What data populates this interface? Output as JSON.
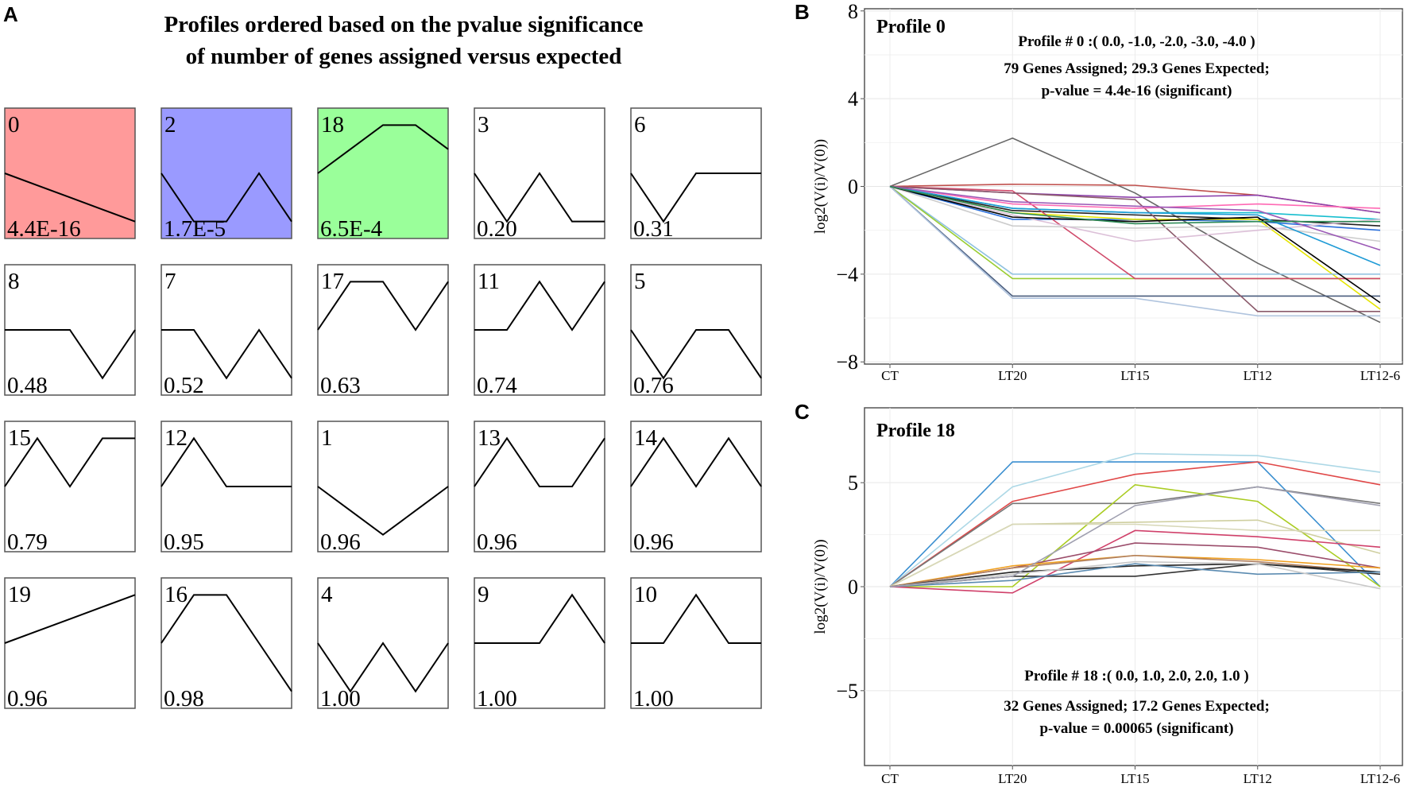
{
  "panel_labels": {
    "a": "A",
    "b": "B",
    "c": "C"
  },
  "chart_data": [
    {
      "type": "profile-grid",
      "title_line1": "Profiles ordered based on the pvalue significance",
      "title_line2": "of number of genes assigned versus expected",
      "profiles": [
        {
          "id": "0",
          "pvalue": "4.4E-16",
          "shape": [
            0,
            -1,
            -2,
            -3,
            -4
          ],
          "fill": "#ff9a9a"
        },
        {
          "id": "2",
          "pvalue": "1.7E-5",
          "shape": [
            0,
            -1,
            -1,
            0,
            -1
          ],
          "fill": "#9a9aff"
        },
        {
          "id": "18",
          "pvalue": "6.5E-4",
          "shape": [
            0,
            1,
            2,
            2,
            1
          ],
          "fill": "#9aff9a"
        },
        {
          "id": "3",
          "pvalue": "0.20",
          "shape": [
            0,
            -1,
            0,
            -1,
            -1
          ],
          "fill": "#ffffff"
        },
        {
          "id": "6",
          "pvalue": "0.31",
          "shape": [
            0,
            -1,
            0,
            0,
            0
          ],
          "fill": "#ffffff"
        },
        {
          "id": "8",
          "pvalue": "0.48",
          "shape": [
            0,
            0,
            0,
            -1,
            0
          ],
          "fill": "#ffffff"
        },
        {
          "id": "7",
          "pvalue": "0.52",
          "shape": [
            0,
            0,
            -1,
            0,
            -1
          ],
          "fill": "#ffffff"
        },
        {
          "id": "17",
          "pvalue": "0.63",
          "shape": [
            0,
            1,
            1,
            0,
            1
          ],
          "fill": "#ffffff"
        },
        {
          "id": "11",
          "pvalue": "0.74",
          "shape": [
            0,
            0,
            1,
            0,
            1
          ],
          "fill": "#ffffff"
        },
        {
          "id": "5",
          "pvalue": "0.76",
          "shape": [
            0,
            -1,
            0,
            0,
            -1
          ],
          "fill": "#ffffff"
        },
        {
          "id": "15",
          "pvalue": "0.79",
          "shape": [
            0,
            1,
            0,
            1,
            1
          ],
          "fill": "#ffffff"
        },
        {
          "id": "12",
          "pvalue": "0.95",
          "shape": [
            0,
            1,
            0,
            0,
            0
          ],
          "fill": "#ffffff"
        },
        {
          "id": "1",
          "pvalue": "0.96",
          "shape": [
            0,
            -1,
            -2,
            -1,
            0
          ],
          "fill": "#ffffff"
        },
        {
          "id": "13",
          "pvalue": "0.96",
          "shape": [
            0,
            1,
            0,
            0,
            1
          ],
          "fill": "#ffffff"
        },
        {
          "id": "14",
          "pvalue": "0.96",
          "shape": [
            0,
            1,
            0,
            1,
            0
          ],
          "fill": "#ffffff"
        },
        {
          "id": "19",
          "pvalue": "0.96",
          "shape": [
            0,
            1,
            2,
            3,
            4
          ],
          "fill": "#ffffff"
        },
        {
          "id": "16",
          "pvalue": "0.98",
          "shape": [
            0,
            1,
            1,
            0,
            -1
          ],
          "fill": "#ffffff"
        },
        {
          "id": "4",
          "pvalue": "1.00",
          "shape": [
            0,
            -1,
            0,
            -1,
            0
          ],
          "fill": "#ffffff"
        },
        {
          "id": "9",
          "pvalue": "1.00",
          "shape": [
            0,
            0,
            0,
            1,
            0
          ],
          "fill": "#ffffff"
        },
        {
          "id": "10",
          "pvalue": "1.00",
          "shape": [
            0,
            0,
            1,
            0,
            0
          ],
          "fill": "#ffffff"
        }
      ]
    },
    {
      "type": "line",
      "title": "Profile 0",
      "annotation_line1": "Profile # 0 :( 0.0, -1.0, -2.0, -3.0, -4.0 )",
      "annotation_line2": "79 Genes Assigned; 29.3 Genes Expected;",
      "annotation_line3": "p-value = 4.4e-16 (significant)",
      "ylabel": "log2(V(i)/V(0))",
      "categories": [
        "CT",
        "LT20",
        "LT15",
        "LT12",
        "LT12-6"
      ],
      "yticks": [
        "8",
        "4",
        "0",
        "−4",
        "−8"
      ],
      "ytick_values": [
        8,
        4,
        0,
        -4,
        -8
      ],
      "ylim": [
        -8.1,
        8.1
      ],
      "grid": true,
      "series": [
        {
          "color": "#666666",
          "values": [
            0,
            2.2,
            -0.3,
            -3.5,
            -6.2
          ]
        },
        {
          "color": "#c0504d",
          "values": [
            0,
            0.1,
            0.05,
            -0.4,
            -1.2
          ]
        },
        {
          "color": "#8e44ad",
          "values": [
            0,
            -0.3,
            -0.5,
            -0.4,
            -1.2
          ]
        },
        {
          "color": "#17becf",
          "values": [
            0,
            -1.0,
            -1.2,
            -1.2,
            -1.5
          ]
        },
        {
          "color": "#222222",
          "values": [
            0,
            -1.1,
            -1.3,
            -1.5,
            -1.8
          ]
        },
        {
          "color": "#2a6fdb",
          "values": [
            0,
            -1.5,
            -1.5,
            -1.6,
            -2.0
          ]
        },
        {
          "color": "#e5e500",
          "values": [
            0,
            -1.2,
            -1.5,
            -1.5,
            -5.6
          ]
        },
        {
          "color": "#8ec1e0",
          "values": [
            0,
            -4.0,
            -4.0,
            -4.0,
            -4.0
          ]
        },
        {
          "color": "#9acd32",
          "values": [
            0,
            -4.2,
            -4.2,
            -4.2,
            -4.2
          ]
        },
        {
          "color": "#4a5d7e",
          "values": [
            0,
            -5.0,
            -5.0,
            -5.0,
            -5.0
          ]
        },
        {
          "color": "#b0c4de",
          "values": [
            0,
            -5.1,
            -5.1,
            -5.9,
            -5.9
          ]
        },
        {
          "color": "#d04a6a",
          "values": [
            0,
            -0.2,
            -4.2,
            -4.2,
            -4.2
          ]
        },
        {
          "color": "#8b5a6b",
          "values": [
            0,
            -0.3,
            -0.6,
            -5.7,
            -5.7
          ]
        },
        {
          "color": "#ff69b4",
          "values": [
            0,
            -0.8,
            -1.0,
            -0.8,
            -1.0
          ]
        },
        {
          "color": "#cccccc",
          "values": [
            0,
            -1.8,
            -1.9,
            -1.8,
            -2.5
          ]
        },
        {
          "color": "#dcc0d8",
          "values": [
            0,
            -1.3,
            -2.5,
            -2.0,
            -1.5
          ]
        },
        {
          "color": "#1f9bd6",
          "values": [
            0,
            -1.0,
            -1.2,
            -1.3,
            -3.6
          ]
        },
        {
          "color": "#9b59b6",
          "values": [
            0,
            -0.7,
            -0.9,
            -1.1,
            -2.9
          ]
        },
        {
          "color": "#000000",
          "values": [
            0,
            -1.4,
            -1.6,
            -1.4,
            -5.3
          ]
        },
        {
          "color": "#2e8b57",
          "values": [
            0,
            -1.2,
            -1.7,
            -1.6,
            -1.6
          ]
        }
      ]
    },
    {
      "type": "line",
      "title": "Profile 18",
      "annotation_line1": "Profile # 18 :( 0.0, 1.0, 2.0, 2.0, 1.0 )",
      "annotation_line2": "32 Genes Assigned; 17.2 Genes Expected;",
      "annotation_line3": "p-value = 0.00065 (significant)",
      "ylabel": "log2(V(i)/V(0))",
      "categories": [
        "CT",
        "LT20",
        "LT15",
        "LT12",
        "LT12-6"
      ],
      "yticks": [
        "5",
        "0",
        "−5"
      ],
      "ytick_values": [
        5,
        0,
        -5
      ],
      "ylim": [
        -8.6,
        8.6
      ],
      "grid": true,
      "series": [
        {
          "color": "#3b8fd0",
          "values": [
            0,
            6.0,
            6.0,
            6.0,
            0
          ]
        },
        {
          "color": "#add8e6",
          "values": [
            0,
            4.8,
            6.4,
            6.3,
            5.5
          ]
        },
        {
          "color": "#e04848",
          "values": [
            0,
            4.1,
            5.4,
            6.0,
            4.9
          ]
        },
        {
          "color": "#777777",
          "values": [
            0,
            4.0,
            4.0,
            4.8,
            4.0
          ]
        },
        {
          "color": "#aacc22",
          "values": [
            0,
            0,
            4.9,
            4.1,
            0
          ]
        },
        {
          "color": "#cfcfa0",
          "values": [
            0,
            3.0,
            3.1,
            3.2,
            1.6
          ]
        },
        {
          "color": "#d8d8b8",
          "values": [
            0,
            3.0,
            3.0,
            2.7,
            2.7
          ]
        },
        {
          "color": "#d0406a",
          "values": [
            0,
            -0.3,
            2.7,
            2.4,
            1.9
          ]
        },
        {
          "color": "#9b4d6b",
          "values": [
            0,
            0.9,
            2.1,
            1.9,
            0.9
          ]
        },
        {
          "color": "#f0a020",
          "values": [
            0,
            1.0,
            1.5,
            1.3,
            0.9
          ]
        },
        {
          "color": "#b08060",
          "values": [
            0,
            0.9,
            1.5,
            1.2,
            0.7
          ]
        },
        {
          "color": "#222222",
          "values": [
            0,
            0.7,
            1.0,
            1.1,
            0.7
          ]
        },
        {
          "color": "#333333",
          "values": [
            0,
            0.5,
            0.5,
            1.1,
            0.6
          ]
        },
        {
          "color": "#5a8ab0",
          "values": [
            0,
            0.3,
            1.1,
            0.6,
            0.7
          ]
        },
        {
          "color": "#c8c8c8",
          "values": [
            0,
            0.6,
            1.2,
            1.1,
            -0.1
          ]
        },
        {
          "color": "#a0a0b0",
          "values": [
            0,
            0.5,
            3.9,
            4.8,
            3.9
          ]
        }
      ]
    }
  ]
}
